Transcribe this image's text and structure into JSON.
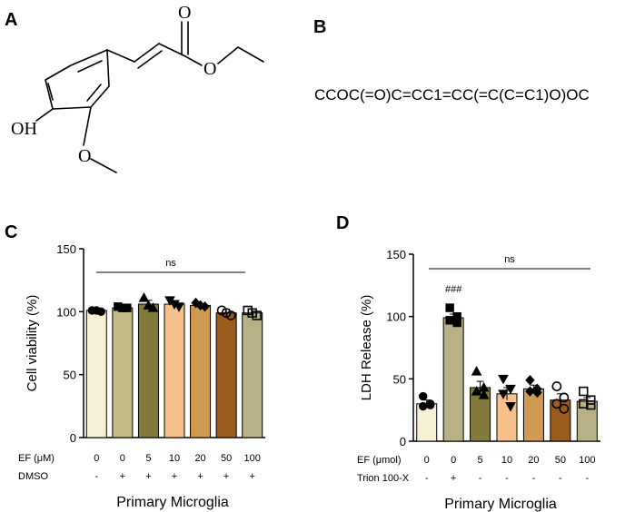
{
  "panel_labels": {
    "a": "A",
    "b": "B",
    "c": "C",
    "d": "D"
  },
  "structure": {
    "oh": "OH",
    "carbonyl_o": "O",
    "ester_o": "O",
    "methoxy_o": "O"
  },
  "smiles": "CCOC(=O)C=CC1=CC(=C(C=C1)O)OC",
  "chart_data": [
    {
      "type": "bar",
      "panel": "C",
      "ylabel": "Cell viability (%)",
      "xlabel": "Primary Microglia",
      "ylim": [
        0,
        150
      ],
      "yticks": [
        "0",
        "50",
        "100",
        "150"
      ],
      "categories": [
        "0",
        "0",
        "5",
        "10",
        "20",
        "50",
        "100"
      ],
      "values": [
        101,
        103,
        106,
        106,
        105,
        99,
        99
      ],
      "errors": [
        1,
        1,
        3,
        2,
        1,
        3,
        3
      ],
      "row_labels": [
        "EF (μM)",
        "DMSO"
      ],
      "rows": [
        [
          "0",
          "0",
          "5",
          "10",
          "20",
          "50",
          "100"
        ],
        [
          "-",
          "+",
          "+",
          "+",
          "+",
          "+",
          "+"
        ]
      ],
      "significance": "ns",
      "bar_colors": [
        "#f6f0d4",
        "#c2bb85",
        "#837b3c",
        "#f7c18c",
        "#cf9a52",
        "#9b5d1d",
        "#b7b185"
      ],
      "markers": [
        "circle",
        "square",
        "triangle",
        "tri-down",
        "diamond",
        "circle-open",
        "square-open"
      ],
      "points": [
        [
          101,
          101,
          100
        ],
        [
          104,
          103,
          103
        ],
        [
          111,
          105,
          103
        ],
        [
          109,
          106,
          104
        ],
        [
          107,
          105,
          104
        ],
        [
          101,
          99,
          97
        ],
        [
          101,
          99,
          97
        ]
      ],
      "grid": false
    },
    {
      "type": "bar",
      "panel": "D",
      "ylabel": "LDH Release (%)",
      "xlabel": "Primary Microglia",
      "ylim": [
        0,
        150
      ],
      "yticks": [
        "0",
        "50",
        "100",
        "150"
      ],
      "categories": [
        "0",
        "0",
        "5",
        "10",
        "20",
        "50",
        "100"
      ],
      "values": [
        30,
        99,
        43,
        38,
        42,
        33,
        32
      ],
      "errors": [
        3,
        3,
        5,
        5,
        3,
        5,
        3
      ],
      "row_labels": [
        "EF (μmol)",
        "Trion 100-X"
      ],
      "rows": [
        [
          "0",
          "0",
          "5",
          "10",
          "20",
          "50",
          "100"
        ],
        [
          "-",
          "+",
          "-",
          "-",
          "-",
          "-",
          "-"
        ]
      ],
      "significance": "ns",
      "annotation": "###",
      "bar_colors": [
        "#f6f0d4",
        "#b7b185",
        "#837b3c",
        "#f7c18c",
        "#cf9a52",
        "#9b5d1d",
        "#b7b185"
      ],
      "markers": [
        "circle",
        "square",
        "triangle",
        "tri-down",
        "diamond",
        "circle-open",
        "square-open"
      ],
      "points": [
        [
          36,
          30,
          28,
          29
        ],
        [
          107,
          100,
          97,
          95
        ],
        [
          56,
          43,
          40,
          37
        ],
        [
          50,
          42,
          38,
          28
        ],
        [
          49,
          42,
          40,
          39
        ],
        [
          44,
          35,
          30,
          26
        ],
        [
          40,
          33,
          30,
          29
        ]
      ],
      "grid": false
    }
  ]
}
